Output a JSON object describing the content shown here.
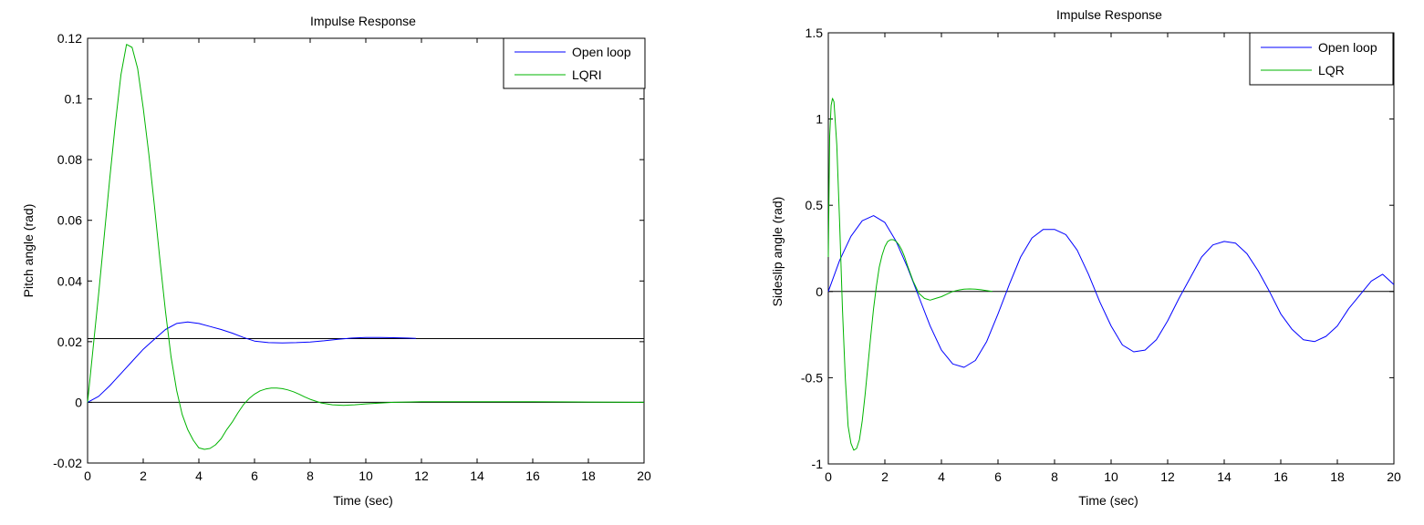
{
  "chart_data": [
    {
      "type": "line",
      "title": "Impulse Response",
      "xlabel": "Time (sec)",
      "ylabel": "Pitch angle (rad)",
      "xlim": [
        0,
        20
      ],
      "ylim": [
        -0.02,
        0.12
      ],
      "xticks": [
        0,
        2,
        4,
        6,
        8,
        10,
        12,
        14,
        16,
        18,
        20
      ],
      "xtick_labels": [
        "0",
        "2",
        "4",
        "6",
        "8",
        "10",
        "12",
        "14",
        "16",
        "18",
        "20"
      ],
      "yticks": [
        -0.02,
        0,
        0.02,
        0.04,
        0.06,
        0.08,
        0.1,
        0.12
      ],
      "ytick_labels": [
        "-0.02",
        "0",
        "0.02",
        "0.04",
        "0.06",
        "0.08",
        "0.1",
        "0.12"
      ],
      "grid": false,
      "legend_position": "top-right",
      "reference_lines": [
        0,
        0.021
      ],
      "series": [
        {
          "name": "Open loop",
          "color": "#0000ff",
          "x": [
            0,
            0.4,
            0.8,
            1.2,
            1.6,
            2.0,
            2.4,
            2.8,
            3.2,
            3.6,
            4.0,
            4.4,
            4.8,
            5.2,
            5.6,
            6.0,
            6.5,
            7.0,
            7.5,
            8.0,
            8.5,
            9.0,
            9.5,
            10.0,
            10.5,
            11.0,
            11.5,
            11.8
          ],
          "y": [
            0,
            0.002,
            0.0055,
            0.0095,
            0.0135,
            0.0175,
            0.0208,
            0.024,
            0.026,
            0.0265,
            0.026,
            0.025,
            0.024,
            0.0228,
            0.0214,
            0.0202,
            0.0197,
            0.0196,
            0.0197,
            0.0199,
            0.0203,
            0.0208,
            0.0212,
            0.0214,
            0.0214,
            0.0213,
            0.0212,
            0.0211
          ]
        },
        {
          "name": "LQRI",
          "color": "#00b400",
          "x": [
            0,
            0.2,
            0.4,
            0.6,
            0.8,
            1.0,
            1.2,
            1.4,
            1.6,
            1.8,
            2.0,
            2.2,
            2.4,
            2.6,
            2.8,
            3.0,
            3.2,
            3.4,
            3.6,
            3.8,
            4.0,
            4.2,
            4.4,
            4.6,
            4.8,
            5.0,
            5.2,
            5.4,
            5.6,
            5.8,
            6.0,
            6.2,
            6.4,
            6.6,
            6.8,
            7.0,
            7.2,
            7.4,
            7.6,
            7.8,
            8.0,
            8.4,
            8.8,
            9.2,
            9.6,
            10.0,
            11.0,
            12.0,
            13.0,
            14.0,
            16.0,
            18.0,
            20.0
          ],
          "y": [
            0,
            0.018,
            0.036,
            0.055,
            0.074,
            0.092,
            0.108,
            0.118,
            0.117,
            0.11,
            0.097,
            0.082,
            0.065,
            0.047,
            0.03,
            0.015,
            0.004,
            -0.004,
            -0.009,
            -0.0125,
            -0.015,
            -0.0155,
            -0.0152,
            -0.014,
            -0.012,
            -0.009,
            -0.0065,
            -0.0035,
            -0.0008,
            0.0012,
            0.0027,
            0.0038,
            0.0044,
            0.0047,
            0.0047,
            0.0045,
            0.0041,
            0.0035,
            0.0027,
            0.0018,
            0.001,
            -0.0002,
            -0.0008,
            -0.001,
            -0.0008,
            -0.0005,
            0,
            0.0002,
            0.0002,
            0.0002,
            0.0002,
            0.0001,
            0
          ]
        }
      ]
    },
    {
      "type": "line",
      "title": "Impulse Response",
      "xlabel": "Time (sec)",
      "ylabel": "Sideslip angle (rad)",
      "xlim": [
        0,
        20
      ],
      "ylim": [
        -1,
        1.5
      ],
      "xticks": [
        0,
        2,
        4,
        6,
        8,
        10,
        12,
        14,
        16,
        18,
        20
      ],
      "xtick_labels": [
        "0",
        "2",
        "4",
        "6",
        "8",
        "10",
        "12",
        "14",
        "16",
        "18",
        "20"
      ],
      "yticks": [
        -1,
        -0.5,
        0,
        0.5,
        1,
        1.5
      ],
      "ytick_labels": [
        "-1",
        "-0.5",
        "0",
        "0.5",
        "1",
        "1.5"
      ],
      "grid": false,
      "legend_position": "top-right",
      "reference_lines": [
        0
      ],
      "series": [
        {
          "name": "Open loop",
          "color": "#0000ff",
          "x": [
            0,
            0.4,
            0.8,
            1.2,
            1.6,
            2.0,
            2.4,
            2.8,
            3.2,
            3.6,
            4.0,
            4.4,
            4.8,
            5.2,
            5.6,
            6.0,
            6.4,
            6.8,
            7.2,
            7.6,
            8.0,
            8.4,
            8.8,
            9.2,
            9.6,
            10.0,
            10.4,
            10.8,
            11.2,
            11.6,
            12.0,
            12.4,
            12.8,
            13.2,
            13.6,
            14.0,
            14.4,
            14.8,
            15.2,
            15.6,
            16.0,
            16.4,
            16.8,
            17.2,
            17.6,
            18.0,
            18.4,
            18.8,
            19.2,
            19.6,
            20.0
          ],
          "y": [
            0,
            0.18,
            0.32,
            0.41,
            0.44,
            0.4,
            0.29,
            0.14,
            -0.03,
            -0.2,
            -0.34,
            -0.42,
            -0.44,
            -0.4,
            -0.29,
            -0.13,
            0.04,
            0.2,
            0.31,
            0.36,
            0.36,
            0.33,
            0.24,
            0.1,
            -0.06,
            -0.2,
            -0.31,
            -0.35,
            -0.34,
            -0.28,
            -0.17,
            -0.04,
            0.08,
            0.2,
            0.27,
            0.29,
            0.28,
            0.22,
            0.12,
            0,
            -0.13,
            -0.22,
            -0.28,
            -0.29,
            -0.26,
            -0.2,
            -0.1,
            -0.02,
            0.06,
            0.1,
            0.04
          ]
        },
        {
          "name": "LQR",
          "color": "#00b400",
          "x": [
            0,
            0.05,
            0.1,
            0.15,
            0.2,
            0.3,
            0.4,
            0.5,
            0.6,
            0.7,
            0.8,
            0.9,
            1.0,
            1.1,
            1.2,
            1.3,
            1.4,
            1.5,
            1.6,
            1.7,
            1.8,
            1.9,
            2.0,
            2.1,
            2.2,
            2.3,
            2.4,
            2.5,
            2.6,
            2.7,
            2.8,
            3.0,
            3.2,
            3.4,
            3.6,
            3.8,
            4.0,
            4.2,
            4.4,
            4.6,
            4.8,
            5.0,
            5.2,
            5.4,
            5.6,
            5.8
          ],
          "y": [
            0.2,
            0.9,
            1.08,
            1.12,
            1.1,
            0.85,
            0.4,
            -0.1,
            -0.5,
            -0.78,
            -0.88,
            -0.92,
            -0.91,
            -0.86,
            -0.75,
            -0.6,
            -0.43,
            -0.26,
            -0.1,
            0.03,
            0.14,
            0.21,
            0.26,
            0.29,
            0.3,
            0.3,
            0.29,
            0.27,
            0.24,
            0.2,
            0.15,
            0.06,
            -0.01,
            -0.04,
            -0.05,
            -0.04,
            -0.03,
            -0.015,
            0,
            0.008,
            0.013,
            0.015,
            0.013,
            0.01,
            0.005,
            0
          ]
        }
      ]
    }
  ]
}
